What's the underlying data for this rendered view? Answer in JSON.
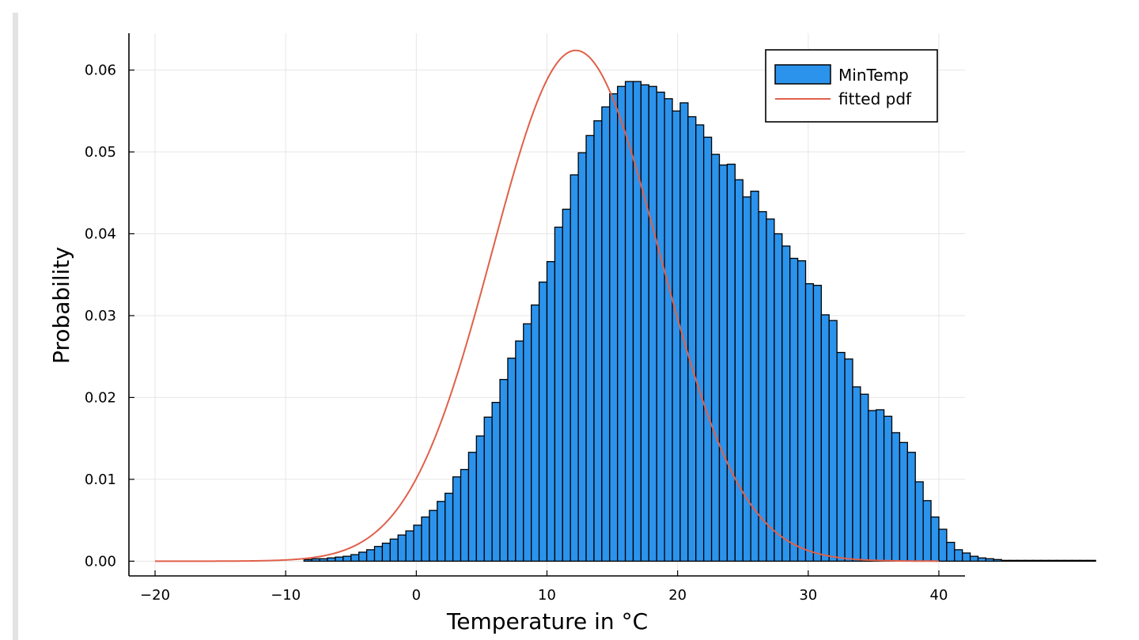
{
  "chart_data": {
    "type": "bar",
    "title": "",
    "xlabel": "Temperature in °C",
    "ylabel": "Probability",
    "xlim": [
      -22,
      42
    ],
    "ylim": [
      -0.0018,
      0.0645
    ],
    "x_ticks": [
      -20,
      -10,
      0,
      10,
      20,
      30,
      40
    ],
    "x_tick_labels": [
      "−20",
      "−10",
      "0",
      "10",
      "20",
      "30",
      "40"
    ],
    "y_ticks": [
      0,
      0.01,
      0.02,
      0.03,
      0.04,
      0.05,
      0.06
    ],
    "y_tick_labels": [
      "0.00",
      "0.01",
      "0.02",
      "0.03",
      "0.04",
      "0.05",
      "0.06"
    ],
    "grid": true,
    "legend_position": "top-right",
    "colors": {
      "histogram": "#2b93ec",
      "pdf": "#e0604a",
      "bar_edge": "#000000"
    },
    "series": [
      {
        "name": "MinTemp",
        "kind": "histogram",
        "bin_width": 0.6,
        "bin_edges_start": -8.6,
        "values": [
          0.0002,
          0.0003,
          0.0003,
          0.0004,
          0.0005,
          0.0006,
          0.0008,
          0.0011,
          0.0014,
          0.0018,
          0.0022,
          0.0027,
          0.0032,
          0.0037,
          0.0044,
          0.0054,
          0.0062,
          0.0073,
          0.0083,
          0.0103,
          0.0112,
          0.0133,
          0.0153,
          0.0176,
          0.0194,
          0.0222,
          0.0248,
          0.0269,
          0.029,
          0.0313,
          0.0341,
          0.0366,
          0.0408,
          0.043,
          0.0472,
          0.0499,
          0.052,
          0.0538,
          0.0555,
          0.0571,
          0.058,
          0.0586,
          0.0586,
          0.0582,
          0.058,
          0.0573,
          0.0565,
          0.055,
          0.056,
          0.0543,
          0.0533,
          0.0518,
          0.0497,
          0.0484,
          0.0485,
          0.0466,
          0.0445,
          0.0452,
          0.0427,
          0.0418,
          0.04,
          0.0385,
          0.037,
          0.0367,
          0.0339,
          0.0337,
          0.0301,
          0.0294,
          0.0255,
          0.0247,
          0.0213,
          0.0204,
          0.0184,
          0.0185,
          0.0177,
          0.0157,
          0.0145,
          0.0133,
          0.0097,
          0.0074,
          0.0054,
          0.0039,
          0.0023,
          0.0014,
          0.001,
          0.0006,
          0.0004,
          0.0003,
          0.0002,
          0.0001,
          0.0001,
          0.0001,
          0.0001,
          0.0001,
          0.0001,
          0.0001,
          0.0001,
          0.0001,
          0.0001,
          0.0001,
          0.0001
        ]
      },
      {
        "name": "fitted pdf",
        "kind": "normal-pdf",
        "mean": 12.2,
        "peak": 0.0624
      }
    ]
  }
}
